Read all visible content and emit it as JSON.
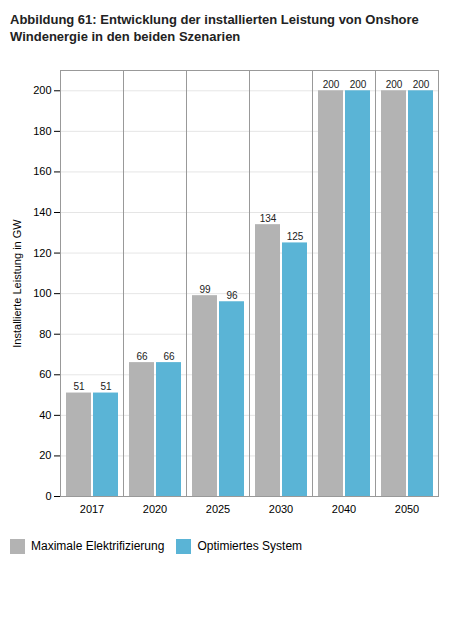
{
  "chart_data": {
    "type": "bar",
    "title": "Abbildung 61: Entwicklung der installierten Leistung von Onshore Windenergie in den beiden Szenarien",
    "ylabel": "Installierte Leistung in GW",
    "categories": [
      "2017",
      "2020",
      "2025",
      "2030",
      "2040",
      "2050"
    ],
    "series": [
      {
        "name": "Maximale Elektrifizierung",
        "color": "#b3b3b3",
        "values": [
          51,
          66,
          99,
          134,
          200,
          200
        ]
      },
      {
        "name": "Optimiertes System",
        "color": "#5ab4d6",
        "values": [
          51,
          66,
          96,
          125,
          200,
          200
        ]
      }
    ],
    "ylim": [
      0,
      210
    ],
    "yticks": [
      0,
      20,
      40,
      60,
      80,
      100,
      120,
      140,
      160,
      180,
      200
    ],
    "grid": true,
    "legend": "bottom",
    "data_labels": true
  }
}
